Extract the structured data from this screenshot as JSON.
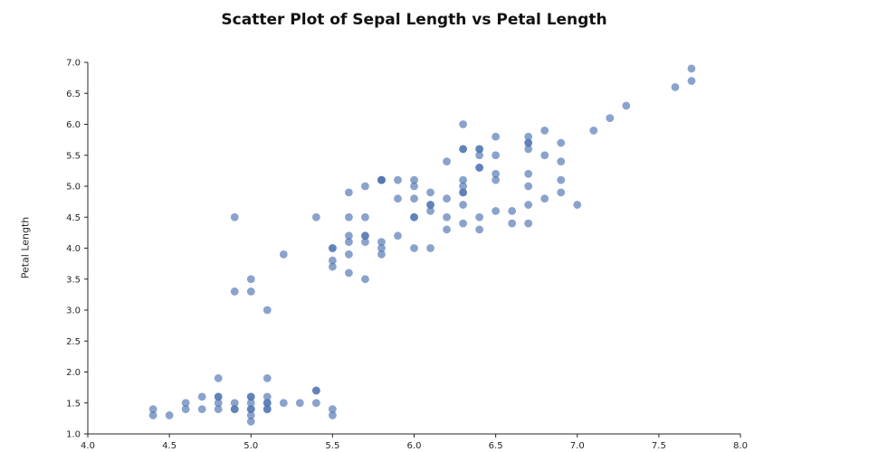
{
  "chart_data": {
    "type": "scatter",
    "title": "Scatter Plot of Sepal Length vs Petal Length",
    "xlabel": "",
    "ylabel": "Petal Length",
    "xlim": [
      4.0,
      8.0
    ],
    "ylim": [
      1.0,
      7.0
    ],
    "x_tick_labels": [
      "4.0",
      "4.5",
      "5.0",
      "5.5",
      "6.0",
      "6.5",
      "7.0",
      "7.5",
      "8.0"
    ],
    "y_tick_labels": [
      "1.0",
      "1.5",
      "2.0",
      "2.5",
      "3.0",
      "3.5",
      "4.0",
      "4.5",
      "5.0",
      "5.5",
      "6.0",
      "6.5",
      "7.0"
    ],
    "grid": false,
    "legend": false,
    "axis_color": "#262626",
    "marker": {
      "color": "#4c72b0",
      "opacity": 0.65,
      "radius": 4.4
    },
    "points": [
      [
        4.4,
        1.4
      ],
      [
        4.4,
        1.3
      ],
      [
        4.5,
        1.3
      ],
      [
        4.6,
        1.5
      ],
      [
        4.6,
        1.4
      ],
      [
        4.7,
        1.6
      ],
      [
        4.7,
        1.4
      ],
      [
        4.8,
        1.9
      ],
      [
        4.8,
        1.6
      ],
      [
        4.8,
        1.6
      ],
      [
        4.8,
        1.5
      ],
      [
        4.8,
        1.4
      ],
      [
        4.9,
        1.5
      ],
      [
        4.9,
        1.4
      ],
      [
        4.9,
        1.4
      ],
      [
        5.0,
        1.6
      ],
      [
        5.0,
        1.6
      ],
      [
        5.0,
        1.5
      ],
      [
        5.0,
        1.4
      ],
      [
        5.0,
        1.4
      ],
      [
        5.0,
        1.3
      ],
      [
        5.0,
        1.2
      ],
      [
        5.1,
        1.9
      ],
      [
        5.1,
        1.6
      ],
      [
        5.1,
        1.5
      ],
      [
        5.1,
        1.5
      ],
      [
        5.1,
        1.4
      ],
      [
        5.1,
        1.4
      ],
      [
        5.2,
        1.5
      ],
      [
        5.3,
        1.5
      ],
      [
        5.4,
        1.7
      ],
      [
        5.4,
        1.7
      ],
      [
        5.4,
        1.5
      ],
      [
        5.5,
        1.4
      ],
      [
        5.5,
        1.3
      ],
      [
        4.9,
        3.3
      ],
      [
        4.9,
        4.5
      ],
      [
        5.0,
        3.5
      ],
      [
        5.0,
        3.3
      ],
      [
        5.1,
        3.0
      ],
      [
        5.2,
        3.9
      ],
      [
        5.4,
        4.5
      ],
      [
        5.5,
        4.0
      ],
      [
        5.5,
        4.0
      ],
      [
        5.5,
        3.8
      ],
      [
        5.5,
        3.7
      ],
      [
        5.6,
        4.9
      ],
      [
        5.6,
        4.5
      ],
      [
        5.6,
        4.2
      ],
      [
        5.6,
        4.1
      ],
      [
        5.6,
        3.9
      ],
      [
        5.6,
        3.6
      ],
      [
        5.7,
        5.0
      ],
      [
        5.7,
        4.5
      ],
      [
        5.7,
        4.2
      ],
      [
        5.7,
        4.2
      ],
      [
        5.7,
        4.1
      ],
      [
        5.7,
        3.5
      ],
      [
        5.8,
        5.1
      ],
      [
        5.8,
        5.1
      ],
      [
        5.8,
        5.1
      ],
      [
        5.8,
        4.1
      ],
      [
        5.8,
        4.0
      ],
      [
        5.8,
        3.9
      ],
      [
        5.9,
        5.1
      ],
      [
        5.9,
        4.8
      ],
      [
        5.9,
        4.2
      ],
      [
        6.0,
        5.1
      ],
      [
        6.0,
        5.0
      ],
      [
        6.0,
        4.8
      ],
      [
        6.0,
        4.5
      ],
      [
        6.0,
        4.5
      ],
      [
        6.0,
        4.0
      ],
      [
        6.1,
        4.9
      ],
      [
        6.1,
        4.7
      ],
      [
        6.1,
        4.7
      ],
      [
        6.1,
        4.6
      ],
      [
        6.1,
        4.0
      ],
      [
        6.2,
        5.4
      ],
      [
        6.2,
        4.8
      ],
      [
        6.2,
        4.5
      ],
      [
        6.2,
        4.3
      ],
      [
        6.3,
        6.0
      ],
      [
        6.3,
        5.6
      ],
      [
        6.3,
        5.6
      ],
      [
        6.3,
        5.1
      ],
      [
        6.3,
        5.0
      ],
      [
        6.3,
        4.9
      ],
      [
        6.3,
        4.9
      ],
      [
        6.3,
        4.7
      ],
      [
        6.3,
        4.4
      ],
      [
        6.4,
        5.6
      ],
      [
        6.4,
        5.6
      ],
      [
        6.4,
        5.5
      ],
      [
        6.4,
        5.3
      ],
      [
        6.4,
        5.3
      ],
      [
        6.4,
        4.5
      ],
      [
        6.4,
        4.3
      ],
      [
        6.5,
        5.8
      ],
      [
        6.5,
        5.5
      ],
      [
        6.5,
        5.2
      ],
      [
        6.5,
        5.1
      ],
      [
        6.5,
        4.6
      ],
      [
        6.6,
        4.6
      ],
      [
        6.6,
        4.4
      ],
      [
        6.7,
        5.8
      ],
      [
        6.7,
        5.7
      ],
      [
        6.7,
        5.7
      ],
      [
        6.7,
        5.6
      ],
      [
        6.7,
        5.2
      ],
      [
        6.7,
        5.0
      ],
      [
        6.7,
        4.7
      ],
      [
        6.7,
        4.4
      ],
      [
        6.8,
        5.9
      ],
      [
        6.8,
        5.5
      ],
      [
        6.8,
        4.8
      ],
      [
        6.9,
        5.7
      ],
      [
        6.9,
        5.4
      ],
      [
        6.9,
        5.1
      ],
      [
        6.9,
        4.9
      ],
      [
        7.0,
        4.7
      ],
      [
        7.1,
        5.9
      ],
      [
        7.2,
        6.1
      ],
      [
        7.3,
        6.3
      ],
      [
        7.6,
        6.6
      ],
      [
        7.7,
        6.9
      ],
      [
        7.7,
        6.7
      ]
    ]
  }
}
